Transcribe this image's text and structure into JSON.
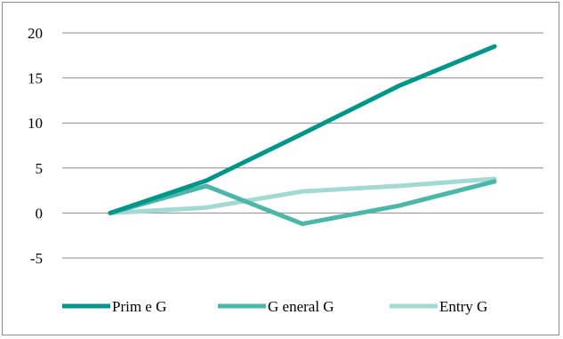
{
  "chart_data": {
    "type": "line",
    "title": "",
    "xlabel": "",
    "ylabel": "",
    "categories": [
      "",
      "",
      "",
      "",
      ""
    ],
    "ylim": [
      -5,
      20
    ],
    "yticks": [
      "20",
      "15",
      "10",
      "5",
      "0",
      "-5"
    ],
    "ytick_values": [
      20,
      15,
      10,
      5,
      0,
      -5
    ],
    "grid": true,
    "legend_position": "bottom",
    "series": [
      {
        "name": "Prim e G",
        "color": "#00968a",
        "values": [
          0,
          3.6,
          8.8,
          14.1,
          18.5
        ]
      },
      {
        "name": "G eneral G",
        "color": "#4bb7ab",
        "values": [
          0,
          3.0,
          -1.2,
          0.8,
          3.5
        ]
      },
      {
        "name": "Entry G",
        "color": "#a3d9d3",
        "values": [
          0,
          0.6,
          2.4,
          3.0,
          3.8
        ]
      }
    ]
  }
}
